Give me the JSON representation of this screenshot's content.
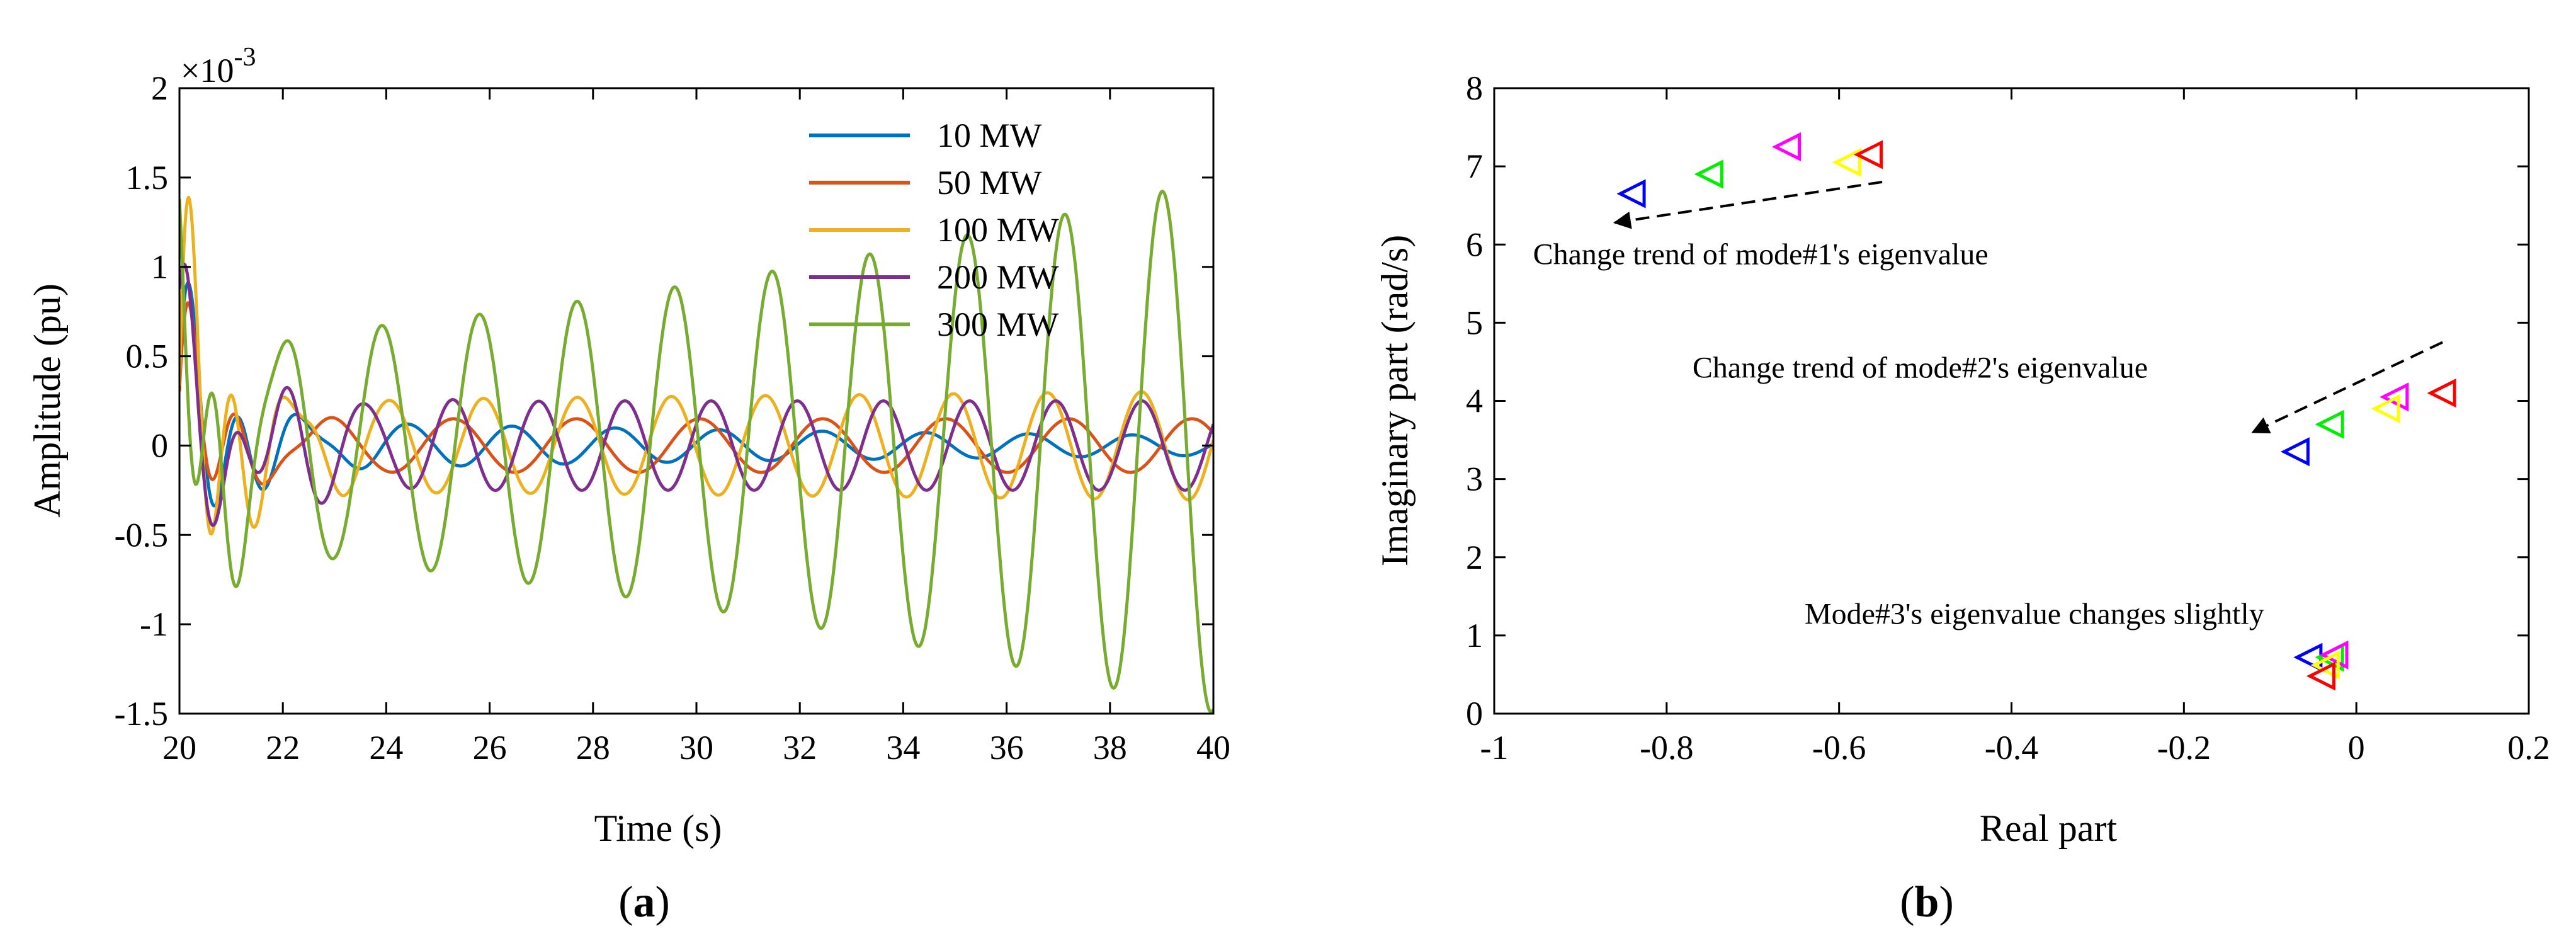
{
  "chart_data": [
    {
      "panel": "(a)",
      "panel_label": "a",
      "type": "line",
      "title": "",
      "xlabel": "Time (s)",
      "ylabel": "Amplitude (pu)",
      "exponent_label": "×10",
      "exponent_power": "-3",
      "xlim": [
        20,
        40
      ],
      "ylim": [
        -1.5,
        2
      ],
      "xticks": [
        "20",
        "22",
        "24",
        "26",
        "28",
        "30",
        "32",
        "34",
        "36",
        "38",
        "40"
      ],
      "yticks": [
        "-1.5",
        "-1",
        "-0.5",
        "0",
        "0.5",
        "1",
        "1.5",
        "2"
      ],
      "legend_position": "top-right",
      "series": [
        {
          "name": "10 MW",
          "color": "#0072BD",
          "model": {
            "f1": 1.0,
            "A1": 1.0,
            "d1": 1.2,
            "f2": 0.5,
            "A2": 0.15,
            "d2": -0.05,
            "ph": 0.4
          }
        },
        {
          "name": "50 MW",
          "color": "#D95319",
          "model": {
            "f1": 1.05,
            "A1": 0.95,
            "d1": 1.6,
            "f2": 0.42,
            "A2": 0.15,
            "d2": 0.0,
            "ph": 0.3
          }
        },
        {
          "name": "100 MW",
          "color": "#EDB120",
          "model": {
            "f1": 1.15,
            "A1": 1.55,
            "d1": 1.3,
            "f2": 0.55,
            "A2": 0.25,
            "d2": 0.01,
            "ph": 0.2
          }
        },
        {
          "name": "200 MW",
          "color": "#7E2F8E",
          "model": {
            "f1": 0.95,
            "A1": 0.9,
            "d1": 0.9,
            "f2": 0.6,
            "A2": 0.25,
            "d2": 0.0,
            "ph": 1.0
          }
        },
        {
          "name": "300 MW",
          "color": "#77AC30",
          "model": {
            "f1": 1.25,
            "A1": 1.1,
            "d1": 1.5,
            "f2": 0.53,
            "A2": 0.55,
            "d2": 0.05,
            "ph": 2.2
          }
        }
      ]
    },
    {
      "panel": "(b)",
      "panel_label": "b",
      "type": "scatter",
      "title": "",
      "xlabel": "Real part",
      "ylabel": "Imaginary part (rad/s)",
      "xlim": [
        -1,
        0.2
      ],
      "ylim": [
        0,
        8
      ],
      "xticks": [
        "-1",
        "-0.8",
        "-0.6",
        "-0.4",
        "-0.2",
        "0",
        "0.2"
      ],
      "yticks": [
        "0",
        "1",
        "2",
        "3",
        "4",
        "5",
        "6",
        "7",
        "8"
      ],
      "marker": "triangle-left",
      "series": [
        {
          "name": "10 MW",
          "color": "#0000FF",
          "points": [
            [
              -0.84,
              6.65
            ],
            [
              -0.07,
              3.35
            ],
            [
              -0.055,
              0.72
            ]
          ]
        },
        {
          "name": "50 MW",
          "color": "#00EE00",
          "points": [
            [
              -0.75,
              6.9
            ],
            [
              -0.03,
              3.7
            ],
            [
              -0.03,
              0.72
            ]
          ]
        },
        {
          "name": "100 MW",
          "color": "#FF00FF",
          "points": [
            [
              -0.66,
              7.25
            ],
            [
              0.045,
              4.05
            ],
            [
              -0.025,
              0.75
            ]
          ]
        },
        {
          "name": "200 MW",
          "color": "#FFFF00",
          "points": [
            [
              -0.59,
              7.05
            ],
            [
              0.035,
              3.9
            ],
            [
              -0.035,
              0.62
            ]
          ]
        },
        {
          "name": "300 MW",
          "color": "#FF0000",
          "points": [
            [
              -0.565,
              7.15
            ],
            [
              0.1,
              4.1
            ],
            [
              -0.04,
              0.48
            ]
          ]
        }
      ],
      "annotations": [
        {
          "text": "Change trend of mode#1's eigenvalue",
          "x": -0.955,
          "y": 5.75,
          "arrow_from": [
            -0.55,
            6.8
          ],
          "arrow_to": [
            -0.86,
            6.28
          ]
        },
        {
          "text": "Change trend of mode#2's eigenvalue",
          "x": -0.77,
          "y": 4.3,
          "arrow_from": [
            0.1,
            4.75
          ],
          "arrow_to": [
            -0.12,
            3.6
          ]
        },
        {
          "text": "Mode#3's eigenvalue changes slightly",
          "x": -0.64,
          "y": 1.15
        }
      ]
    }
  ]
}
